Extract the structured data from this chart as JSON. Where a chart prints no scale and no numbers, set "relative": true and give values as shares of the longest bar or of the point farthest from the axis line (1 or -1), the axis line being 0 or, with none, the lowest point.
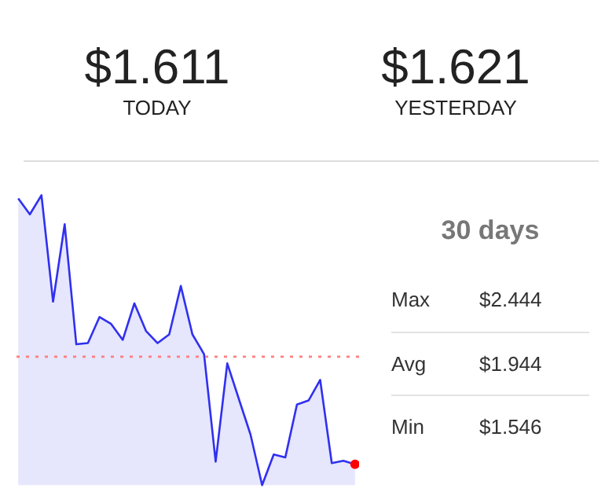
{
  "chart_data": {
    "type": "area",
    "relative": true,
    "annotations": [
      "$1.611",
      "TODAY",
      "$1.621",
      "YESTERDAY",
      "30 days",
      "Max",
      "$2.444",
      "Avg",
      "$1.944",
      "Min",
      "$1.546"
    ],
    "categories": [
      null,
      null,
      null,
      null,
      null,
      null,
      null,
      null,
      null,
      null,
      null,
      null,
      null,
      null,
      null,
      null,
      null,
      null,
      null,
      null,
      null,
      null,
      null,
      null,
      null,
      null,
      null,
      null,
      null,
      null
    ],
    "series": [
      {
        "color": "#3030f0",
        "values": [
          0.989,
          0.934,
          1,
          0.633,
          0.9,
          0.486,
          0.49,
          0.58,
          0.556,
          0.501,
          0.627,
          0.532,
          0.49,
          0.52,
          0.687,
          0.52,
          0.452,
          0.081,
          0.42,
          0.297,
          0.175,
          0,
          0.106,
          0.096,
          0.278,
          0.292,
          0.363,
          0.076,
          0.084,
          0.072
        ],
        "colors": [
          null,
          null,
          null,
          null,
          null,
          null,
          null,
          null,
          null,
          null,
          null,
          null,
          null,
          null,
          null,
          null,
          null,
          null,
          null,
          null,
          null,
          null,
          null,
          null,
          null,
          null,
          null,
          null,
          null,
          "#ff0000"
        ]
      }
    ],
    "ref_lines": [
      {
        "axis": "y",
        "value": 0.443,
        "color": "#ff7f7f",
        "line_style": "dotted"
      }
    ],
    "tick_labels": false
  }
}
